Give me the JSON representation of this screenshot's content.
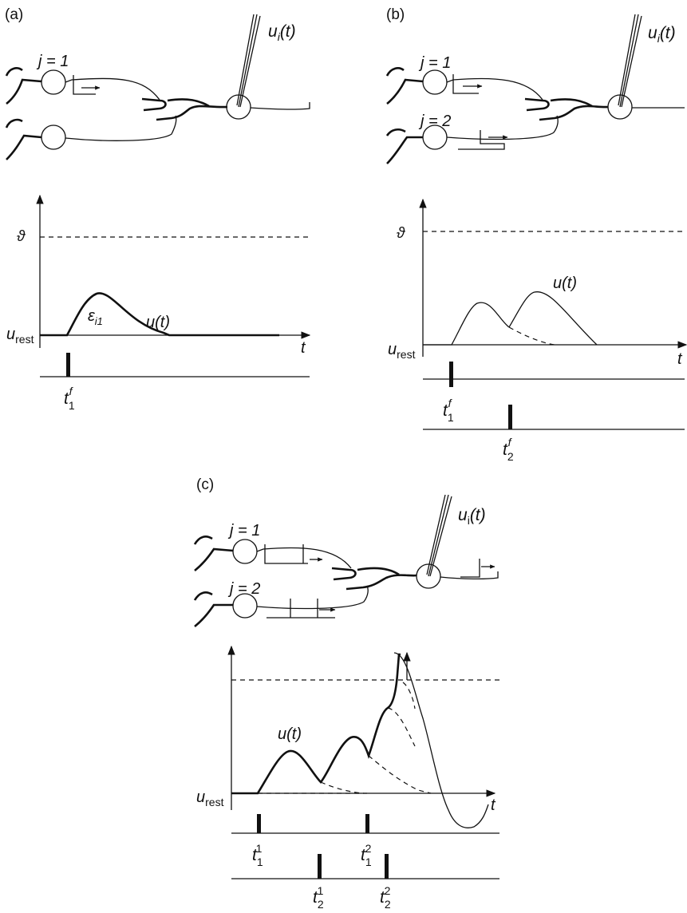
{
  "panels": {
    "a": {
      "label": "(a)",
      "neuron1": "j = 1",
      "probe": "u",
      "probe_sub": "i",
      "probe_arg": "(t)",
      "theta": "ϑ",
      "u_rest": "u",
      "u_rest_sub": "rest",
      "eps": "ε",
      "eps_sub": "i1",
      "ut": "u(t)",
      "t_axis": "t",
      "spike_t": "t",
      "spike_sub": "1",
      "spike_sup": "f"
    },
    "b": {
      "label": "(b)",
      "neuron1": "j = 1",
      "neuron2": "j = 2",
      "probe": "u",
      "probe_sub": "i",
      "probe_arg": "(t)",
      "theta": "ϑ",
      "u_rest": "u",
      "u_rest_sub": "rest",
      "ut": "u(t)",
      "t_axis": "t",
      "spike1_t": "t",
      "spike1_sub": "1",
      "spike1_sup": "f",
      "spike2_t": "t",
      "spike2_sub": "2",
      "spike2_sup": "f"
    },
    "c": {
      "label": "(c)",
      "neuron1": "j = 1",
      "neuron2": "j = 2",
      "probe": "u",
      "probe_sub": "i",
      "probe_arg": "(t)",
      "u_rest": "u",
      "u_rest_sub": "rest",
      "ut": "u(t)",
      "t_axis": "t",
      "s11_t": "t",
      "s11_sub": "1",
      "s11_sup": "1",
      "s12_t": "t",
      "s12_sub": "1",
      "s12_sup": "2",
      "s21_t": "t",
      "s21_sub": "2",
      "s21_sup": "1",
      "s22_t": "t",
      "s22_sub": "2",
      "s22_sup": "2"
    }
  }
}
